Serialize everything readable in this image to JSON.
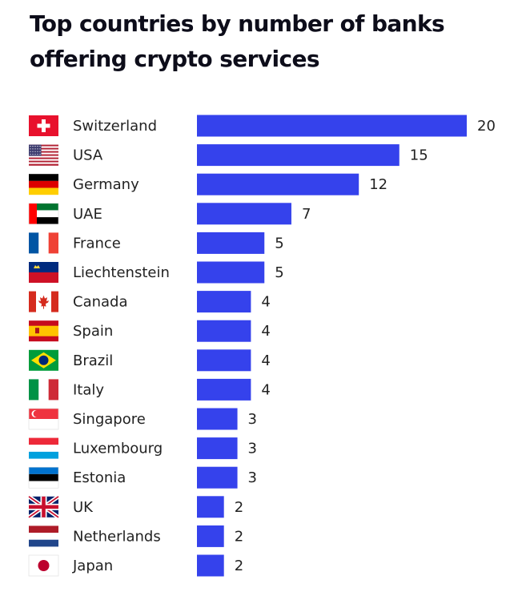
{
  "chart_data": {
    "type": "bar",
    "orientation": "horizontal",
    "title": "Top countries by number of banks offering crypto services",
    "categories": [
      "Switzerland",
      "USA",
      "Germany",
      "UAE",
      "France",
      "Liechtenstein",
      "Canada",
      "Spain",
      "Brazil",
      "Italy",
      "Singapore",
      "Luxembourg",
      "Estonia",
      "UK",
      "Netherlands",
      "Japan"
    ],
    "values": [
      20,
      15,
      12,
      7,
      5,
      5,
      4,
      4,
      4,
      4,
      3,
      3,
      3,
      2,
      2,
      2
    ],
    "value_labels": [
      "20",
      "15",
      "12",
      "7",
      "5",
      "5",
      "4",
      "4",
      "4",
      "4",
      "3",
      "3",
      "3",
      "2",
      "2",
      "2"
    ],
    "flags": [
      "switzerland-flag-icon",
      "usa-flag-icon",
      "germany-flag-icon",
      "uae-flag-icon",
      "france-flag-icon",
      "liechtenstein-flag-icon",
      "canada-flag-icon",
      "spain-flag-icon",
      "brazil-flag-icon",
      "italy-flag-icon",
      "singapore-flag-icon",
      "luxembourg-flag-icon",
      "estonia-flag-icon",
      "uk-flag-icon",
      "netherlands-flag-icon",
      "japan-flag-icon"
    ],
    "bar_color": "#3542ec",
    "xlim": [
      0,
      20
    ],
    "grid": false,
    "legend": "none"
  }
}
